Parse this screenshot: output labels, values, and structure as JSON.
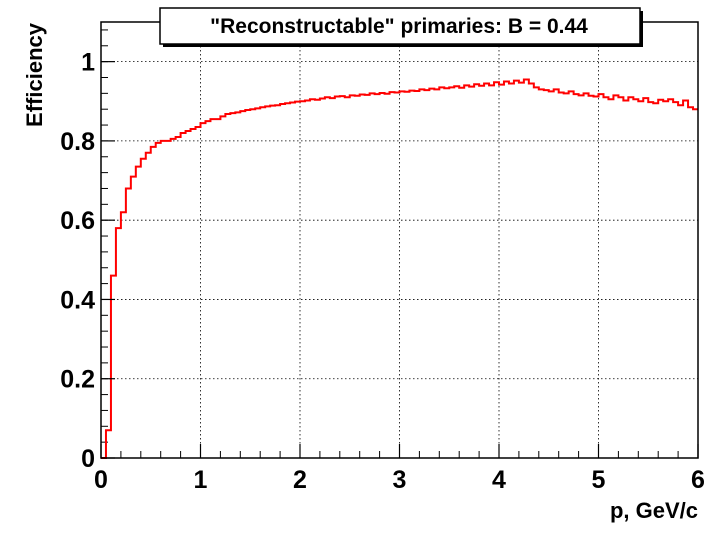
{
  "chart_data": {
    "type": "line",
    "title": "\"Reconstructable\" primaries: B = 0.44",
    "xlabel": "p, GeV/c",
    "ylabel": "Efficiency",
    "xlim": [
      0,
      6
    ],
    "ylim": [
      0,
      1.1
    ],
    "xticks": [
      "0",
      "1",
      "2",
      "3",
      "4",
      "5",
      "6"
    ],
    "yticks": [
      "0",
      "0.2",
      "0.4",
      "0.6",
      "0.8",
      "1"
    ],
    "grid": true,
    "series": [
      {
        "color": "#ff0000",
        "style": "step",
        "bin_width": 0.05,
        "x_start": 0.0,
        "values": [
          0.0,
          0.07,
          0.46,
          0.58,
          0.62,
          0.68,
          0.71,
          0.735,
          0.755,
          0.77,
          0.785,
          0.795,
          0.8,
          0.8,
          0.805,
          0.81,
          0.82,
          0.825,
          0.83,
          0.835,
          0.845,
          0.85,
          0.855,
          0.855,
          0.862,
          0.868,
          0.87,
          0.872,
          0.875,
          0.878,
          0.88,
          0.882,
          0.885,
          0.887,
          0.889,
          0.89,
          0.893,
          0.895,
          0.897,
          0.899,
          0.9,
          0.902,
          0.905,
          0.904,
          0.907,
          0.91,
          0.908,
          0.912,
          0.913,
          0.91,
          0.915,
          0.914,
          0.917,
          0.916,
          0.92,
          0.918,
          0.921,
          0.919,
          0.923,
          0.922,
          0.925,
          0.924,
          0.927,
          0.926,
          0.93,
          0.928,
          0.932,
          0.93,
          0.935,
          0.933,
          0.935,
          0.938,
          0.934,
          0.94,
          0.937,
          0.943,
          0.939,
          0.945,
          0.94,
          0.948,
          0.942,
          0.95,
          0.945,
          0.952,
          0.947,
          0.955,
          0.945,
          0.935,
          0.93,
          0.928,
          0.925,
          0.93,
          0.922,
          0.92,
          0.925,
          0.918,
          0.915,
          0.92,
          0.914,
          0.912,
          0.918,
          0.91,
          0.905,
          0.915,
          0.91,
          0.902,
          0.91,
          0.905,
          0.9,
          0.908,
          0.898,
          0.895,
          0.904,
          0.9,
          0.905,
          0.898,
          0.89,
          0.902,
          0.885,
          0.88
        ]
      }
    ]
  }
}
